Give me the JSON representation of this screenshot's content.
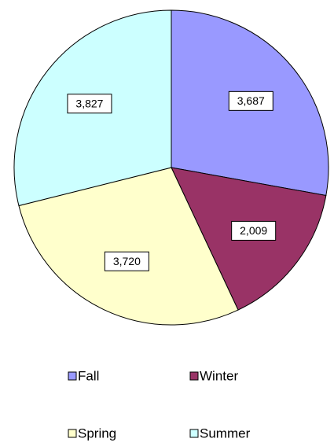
{
  "chart_data": {
    "type": "pie",
    "categories": [
      "Fall",
      "Winter",
      "Spring",
      "Summer"
    ],
    "values": [
      3687,
      2009,
      3720,
      3827
    ],
    "value_labels": [
      "3,687",
      "2,009",
      "3,720",
      "3,827"
    ],
    "colors": [
      "#9999ff",
      "#993366",
      "#ffffcc",
      "#ccffff"
    ]
  }
}
